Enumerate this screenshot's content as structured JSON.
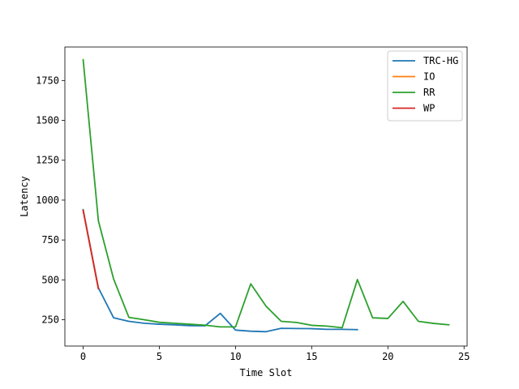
{
  "chart_data": {
    "type": "line",
    "title": "",
    "xlabel": "Time Slot",
    "ylabel": "Latency",
    "xlim": [
      -1.2,
      25.2
    ],
    "ylim": [
      85,
      1960
    ],
    "x_ticks": [
      0,
      5,
      10,
      15,
      20,
      25
    ],
    "y_ticks": [
      250,
      500,
      750,
      1000,
      1250,
      1500,
      1750
    ],
    "grid": false,
    "legend_position": "top-right",
    "series": [
      {
        "name": "TRC-HG",
        "color": "#1f77b4",
        "x": [
          0,
          1,
          2,
          3,
          4,
          5,
          6,
          7,
          8,
          9,
          10,
          11,
          12,
          13,
          14,
          15,
          16,
          17,
          18
        ],
        "y": [
          940,
          450,
          262,
          240,
          228,
          222,
          218,
          213,
          212,
          290,
          185,
          178,
          175,
          196,
          195,
          194,
          190,
          190,
          188
        ]
      },
      {
        "name": "IO",
        "color": "#ff7f0e",
        "x": [
          0,
          1
        ],
        "y": [
          935,
          445
        ]
      },
      {
        "name": "RR",
        "color": "#2ca02c",
        "x": [
          0,
          1,
          2,
          3,
          4,
          5,
          6,
          7,
          8,
          9,
          10,
          11,
          12,
          13,
          14,
          15,
          16,
          17,
          18,
          19,
          20,
          21,
          22,
          23,
          24
        ],
        "y": [
          1880,
          870,
          505,
          265,
          250,
          234,
          228,
          222,
          216,
          205,
          205,
          475,
          335,
          240,
          233,
          215,
          210,
          200,
          502,
          262,
          258,
          365,
          240,
          227,
          218
        ]
      },
      {
        "name": "WP",
        "color": "#d62728",
        "x": [
          0,
          1
        ],
        "y": [
          935,
          445
        ]
      }
    ]
  }
}
